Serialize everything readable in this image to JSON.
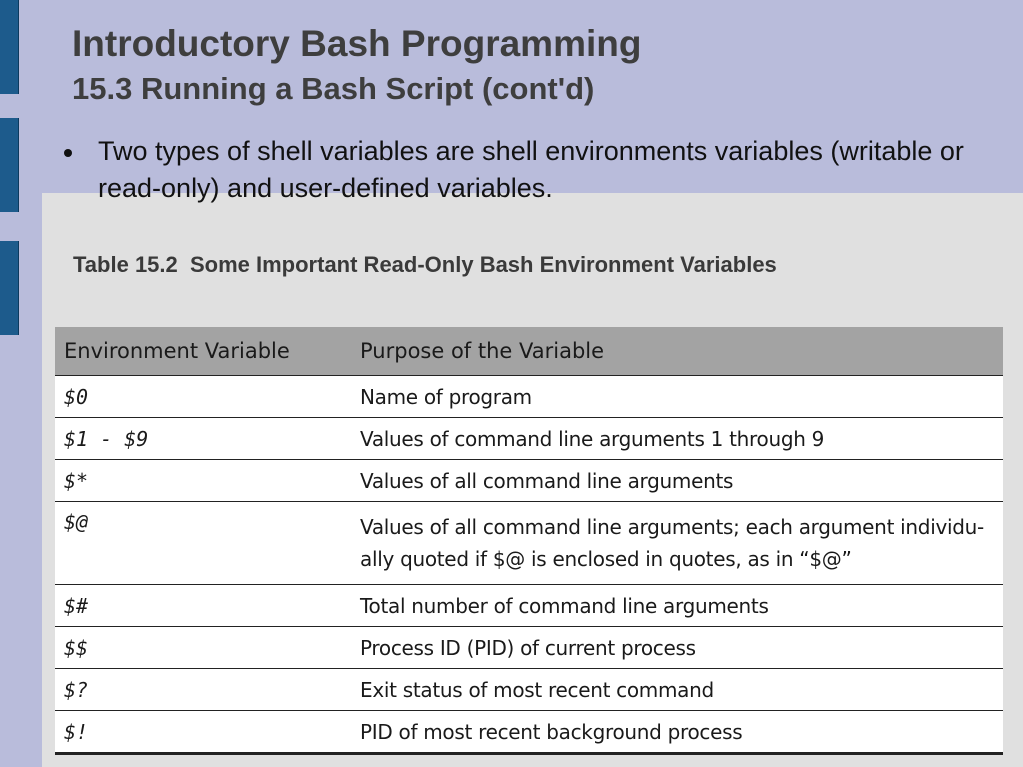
{
  "slide": {
    "title": "Introductory Bash Programming",
    "subtitle": "15.3 Running a Bash Script (cont'd)",
    "bullet": "Two types of shell variables are shell environments variables (writable or read-only) and user-defined variables.",
    "table_caption": "Table 15.2  Some Important Read-Only Bash Environment Variables"
  },
  "table": {
    "headers": [
      "Environment Variable",
      "Purpose of the Variable"
    ],
    "rows": [
      {
        "variable": "$0",
        "purpose": "Name of program"
      },
      {
        "variable": "$1 - $9",
        "purpose": "Values of command line arguments 1 through 9"
      },
      {
        "variable": "$*",
        "purpose": "Values of all command line arguments"
      },
      {
        "variable": "$@",
        "purpose": "Values of all command line arguments; each argument individu-ally quoted if $@ is enclosed in quotes, as in “$@”"
      },
      {
        "variable": "$#",
        "purpose": "Total number of command line arguments"
      },
      {
        "variable": "$$",
        "purpose": "Process ID (PID) of current process"
      },
      {
        "variable": "$?",
        "purpose": "Exit status of most recent command"
      },
      {
        "variable": "$!",
        "purpose": "PID of most recent background process"
      }
    ]
  },
  "colors": {
    "slide_background": "#b9bcdb",
    "panel_background": "#e0e0e0",
    "edge_bar": "#1d5b8c",
    "table_header": "#a3a3a3"
  }
}
